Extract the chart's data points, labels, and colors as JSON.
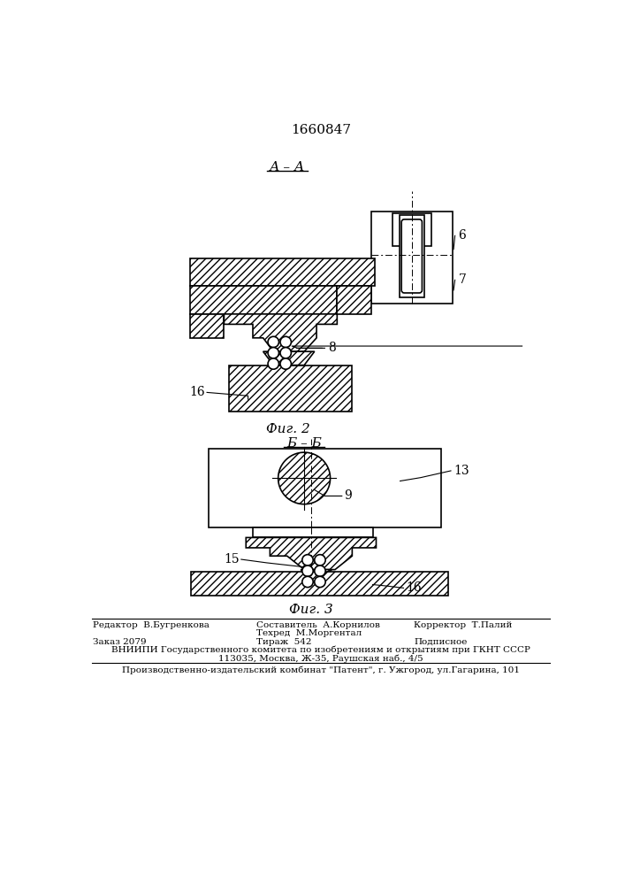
{
  "title_number": "1660847",
  "fig2_label": "А – А",
  "fig2_caption": "Фиг. 2",
  "fig3_label": "Б – Б",
  "fig3_caption": "Фиг. 3",
  "label_6": "6",
  "label_7": "7",
  "label_8": "8",
  "label_9": "9",
  "label_13": "13",
  "label_15": "15",
  "label_16_fig2": "16",
  "label_16_fig3": "16",
  "line_color": "#000000",
  "bg_color": "#ffffff",
  "footer_editor": "Редактор  В.Бугренкова",
  "footer_composer": "Составитель  А.Корнилов",
  "footer_techred": "Техред  М.Моргентал",
  "footer_corrector": "Корректор  Т.Палий",
  "footer_order": "Заказ 2079",
  "footer_tirazh": "Тираж  542",
  "footer_podpisnoe": "Подписное",
  "footer_vniip": "ВНИИПИ Государственного комитета по изобретениям и открытиям при ГКНТ СССР",
  "footer_addr": "113035, Москва, Ж-35, Раушская наб., 4/5",
  "footer_patent": "Производственно-издательский комбинат \"Патент\", г. Ужгород, ул.Гагарина, 101"
}
